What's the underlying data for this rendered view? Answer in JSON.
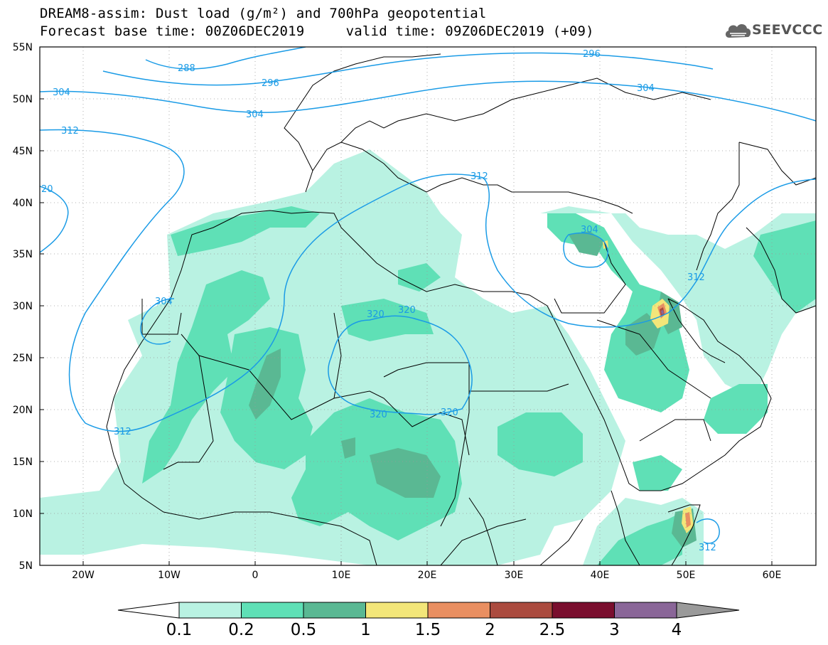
{
  "title": {
    "line1": "DREAM8-assim: Dust load (g/m²) and 700hPa geopotential",
    "line2": "Forecast base time: 00Z06DEC2019     valid time: 09Z06DEC2019 (+09)"
  },
  "logo": {
    "text": "SEEVCCC",
    "icon": "cloud-logo-icon"
  },
  "map": {
    "lon_range": [
      -25,
      65
    ],
    "lat_range": [
      5,
      55
    ],
    "x_ticks": [
      "20W",
      "10W",
      "0",
      "10E",
      "20E",
      "30E",
      "40E",
      "50E",
      "60E"
    ],
    "y_ticks": [
      "55N",
      "50N",
      "45N",
      "40N",
      "35N",
      "30N",
      "25N",
      "20N",
      "15N",
      "10N",
      "5N"
    ],
    "contour_labels": [
      "288",
      "296",
      "296",
      "304",
      "304",
      "304",
      "304",
      "304",
      "312",
      "312",
      "312",
      "312",
      "312",
      "320",
      "320",
      "320",
      "320",
      "20"
    ],
    "contour_color": "#1a9be6",
    "grid": "dotted"
  },
  "colorbar": {
    "labels": [
      "0.1",
      "0.2",
      "0.5",
      "1",
      "1.5",
      "2",
      "2.5",
      "3",
      "4"
    ],
    "colors": [
      "#b9f2e2",
      "#5fe0b6",
      "#5ab893",
      "#f3e679",
      "#e98f61",
      "#ab4b3f",
      "#7a0e2e",
      "#8a6698",
      "#9a9a9a"
    ]
  }
}
